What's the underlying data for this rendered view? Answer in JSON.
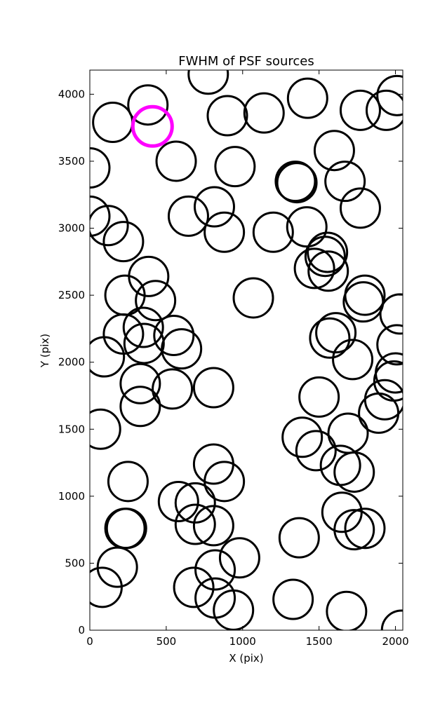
{
  "chart_data": {
    "type": "scatter",
    "title": "FWHM of PSF sources",
    "xlabel": "X (pix)",
    "ylabel": "Y (pix)",
    "xlim": [
      0,
      2048
    ],
    "ylim": [
      0,
      4180
    ],
    "xticks": [
      0,
      500,
      1000,
      1500,
      2000
    ],
    "yticks": [
      0,
      500,
      1000,
      1500,
      2000,
      2500,
      3000,
      3500,
      4000
    ],
    "grid": false,
    "marker": "open-circle",
    "series": [
      {
        "color": "#000000",
        "points": [
          [
            775,
            4150
          ],
          [
            380,
            3920
          ],
          [
            150,
            3790
          ],
          [
            900,
            3840
          ],
          [
            1140,
            3860
          ],
          [
            1425,
            3970
          ],
          [
            1770,
            3880
          ],
          [
            1940,
            3880
          ],
          [
            2010,
            3990
          ],
          [
            565,
            3500
          ],
          [
            950,
            3460
          ],
          [
            0,
            3450
          ],
          [
            1600,
            3580
          ],
          [
            1345,
            3350
          ],
          [
            1355,
            3340
          ],
          [
            1670,
            3350
          ],
          [
            0,
            3090
          ],
          [
            120,
            3020
          ],
          [
            645,
            3090
          ],
          [
            815,
            3160
          ],
          [
            880,
            2970
          ],
          [
            1200,
            2970
          ],
          [
            1420,
            3010
          ],
          [
            1770,
            3150
          ],
          [
            220,
            2900
          ],
          [
            1555,
            2820
          ],
          [
            1540,
            2790
          ],
          [
            1470,
            2700
          ],
          [
            1560,
            2680
          ],
          [
            385,
            2640
          ],
          [
            430,
            2460
          ],
          [
            230,
            2500
          ],
          [
            1070,
            2480
          ],
          [
            1800,
            2500
          ],
          [
            1790,
            2450
          ],
          [
            2030,
            2360
          ],
          [
            350,
            2260
          ],
          [
            220,
            2210
          ],
          [
            355,
            2140
          ],
          [
            550,
            2200
          ],
          [
            600,
            2100
          ],
          [
            1610,
            2220
          ],
          [
            1570,
            2180
          ],
          [
            1720,
            2020
          ],
          [
            2010,
            2130
          ],
          [
            2000,
            1920
          ],
          [
            1990,
            1860
          ],
          [
            95,
            2040
          ],
          [
            330,
            1840
          ],
          [
            540,
            1800
          ],
          [
            810,
            1810
          ],
          [
            330,
            1670
          ],
          [
            1500,
            1740
          ],
          [
            1930,
            1720
          ],
          [
            1890,
            1620
          ],
          [
            70,
            1500
          ],
          [
            1390,
            1440
          ],
          [
            1690,
            1470
          ],
          [
            1480,
            1340
          ],
          [
            1640,
            1230
          ],
          [
            1730,
            1180
          ],
          [
            810,
            1240
          ],
          [
            880,
            1110
          ],
          [
            250,
            1110
          ],
          [
            580,
            960
          ],
          [
            690,
            950
          ],
          [
            690,
            790
          ],
          [
            810,
            780
          ],
          [
            240,
            760
          ],
          [
            230,
            760
          ],
          [
            1650,
            880
          ],
          [
            1730,
            750
          ],
          [
            1800,
            760
          ],
          [
            1370,
            690
          ],
          [
            180,
            470
          ],
          [
            80,
            320
          ],
          [
            980,
            540
          ],
          [
            820,
            450
          ],
          [
            680,
            320
          ],
          [
            820,
            240
          ],
          [
            940,
            150
          ],
          [
            1330,
            230
          ],
          [
            1680,
            140
          ],
          [
            2040,
            0
          ]
        ]
      },
      {
        "color": "#ff00ff",
        "points": [
          [
            410,
            3760
          ]
        ]
      }
    ]
  }
}
